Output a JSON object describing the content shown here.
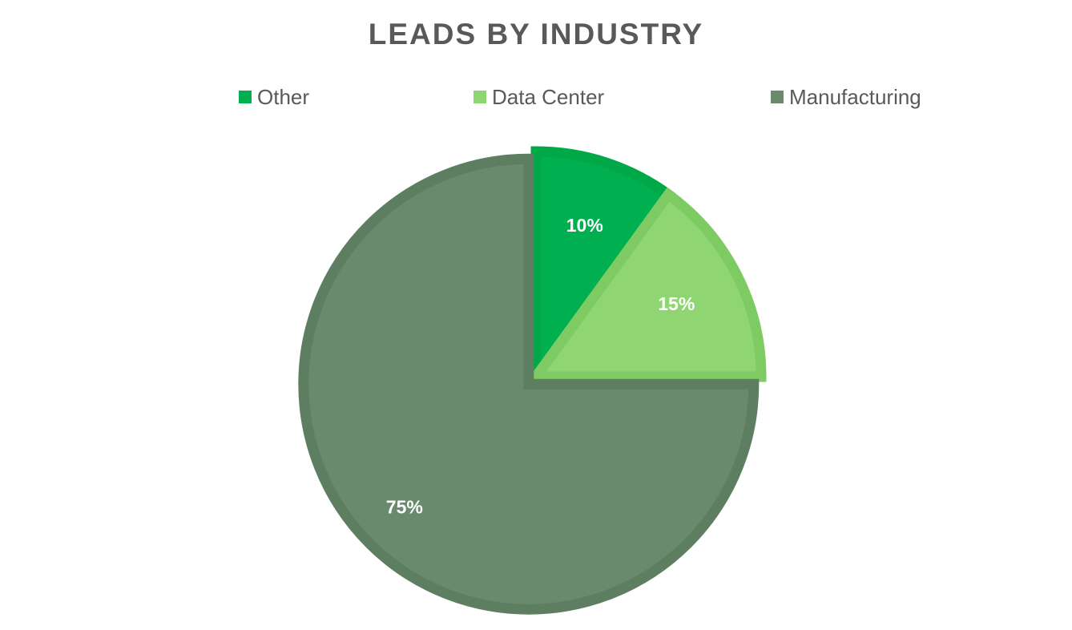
{
  "chart_data": {
    "type": "pie",
    "title": "LEADS BY INDUSTRY",
    "categories": [
      "Other",
      "Data Center",
      "Manufacturing"
    ],
    "values": [
      10,
      15,
      75
    ],
    "data_labels": [
      "10%",
      "15%",
      "75%"
    ],
    "colors": [
      "#00b050",
      "#8fd672",
      "#6a8a6d"
    ],
    "border_colors": [
      "#00a847",
      "#7fcb63",
      "#5e7e61"
    ],
    "legend": "top",
    "start_angle_deg": 0,
    "direction": "clockwise"
  }
}
